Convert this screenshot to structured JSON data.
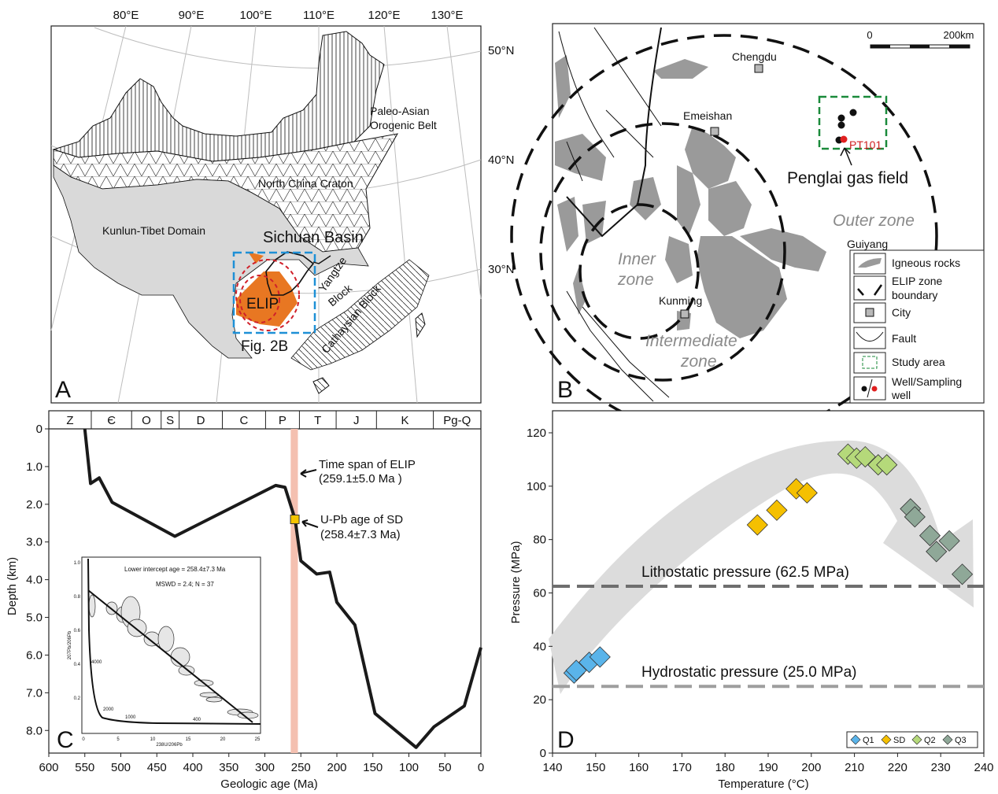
{
  "panel_a": {
    "letter": "A",
    "lon_labels": [
      "80°E",
      "90°E",
      "100°E",
      "110°E",
      "120°E",
      "130°E"
    ],
    "lat_labels": [
      "50°N",
      "40°N",
      "30°N"
    ],
    "regions": {
      "paleo_asian_1": "Paleo-Asian",
      "paleo_asian_2": "Orogenic Belt",
      "north_china": "North China Craton",
      "kunlun": "Kunlun-Tibet Domain",
      "sichuan": "Sichuan Basin",
      "elip": "ELIP",
      "yangtze_1": "Yangtze",
      "yangtze_2": "Block",
      "cathaysian": "Cathaysian Block",
      "fig_ref": "Fig. 2B"
    },
    "colors": {
      "tibet": "#d9d9d9",
      "elip": "#e87722",
      "inset_box": "#1e90d6",
      "elip_zone": "#d0202a"
    }
  },
  "panel_b": {
    "letter": "B",
    "scale_bar": {
      "start": "0",
      "end": "200km"
    },
    "cities": {
      "chengdu": "Chengdu",
      "emeishan": "Emeishan",
      "kunming": "Kunming",
      "guiyang": "Guiyang"
    },
    "well_label": "PT101",
    "gas_field": "Penglai gas field",
    "zones": {
      "outer": "Outer zone",
      "inner_1": "Inner",
      "inner_2": "zone",
      "intermediate_1": "Intermediate",
      "intermediate_2": "zone"
    },
    "legend": [
      {
        "label": "Igneous rocks"
      },
      {
        "label": "ELIP zone",
        "label2": "boundary"
      },
      {
        "label": "City"
      },
      {
        "label": "Fault"
      },
      {
        "label": "Study area"
      },
      {
        "label": "Well/Sampling",
        "label2": "well"
      }
    ],
    "colors": {
      "igneous": "#9a9a9a",
      "study_area": "#1a8a3a",
      "sampling_well": "#e02020"
    }
  },
  "chart_data": [
    {
      "panel": "C",
      "type": "line",
      "xlabel": "Geologic age (Ma)",
      "ylabel": "Depth (km)",
      "xlim": [
        600,
        0
      ],
      "ylim": [
        0,
        8.6
      ],
      "xticks": [
        "600",
        "550",
        "500",
        "450",
        "400",
        "350",
        "300",
        "250",
        "200",
        "150",
        "100",
        "50",
        "0"
      ],
      "yticks": [
        "0",
        "1.0",
        "2.0",
        "3.0",
        "4.0",
        "5.0",
        "6.0",
        "7.0",
        "8.0"
      ],
      "periods": [
        {
          "name": "Z",
          "start": 600,
          "end": 541
        },
        {
          "name": "Є",
          "start": 541,
          "end": 485
        },
        {
          "name": "O",
          "start": 485,
          "end": 444
        },
        {
          "name": "S",
          "start": 444,
          "end": 419
        },
        {
          "name": "D",
          "start": 419,
          "end": 359
        },
        {
          "name": "C",
          "start": 359,
          "end": 299
        },
        {
          "name": "P",
          "start": 299,
          "end": 252
        },
        {
          "name": "T",
          "start": 252,
          "end": 201
        },
        {
          "name": "J",
          "start": 201,
          "end": 145
        },
        {
          "name": "K",
          "start": 145,
          "end": 66
        },
        {
          "name": "Pg-Q",
          "start": 66,
          "end": 0
        }
      ],
      "burial_curve": {
        "x": [
          550,
          542,
          530,
          512,
          425,
          285,
          272,
          258,
          250,
          228,
          210,
          200,
          175,
          147,
          90,
          65,
          23,
          0
        ],
        "y": [
          0,
          1.45,
          1.3,
          1.95,
          2.85,
          1.5,
          1.55,
          2.4,
          3.5,
          3.85,
          3.8,
          4.6,
          5.2,
          7.55,
          8.45,
          7.9,
          7.35,
          5.8
        ]
      },
      "elip_span": {
        "center": 259.1,
        "error": 5.0,
        "color": "#f4c0b0"
      },
      "sd_point": {
        "x": 258.4,
        "y": 2.4,
        "color": "#f5c400"
      },
      "annotations": {
        "elip_1": "Time span of ELIP",
        "elip_2": "(259.1±5.0 Ma )",
        "sd_1": "U-Pb age of SD",
        "sd_2": "(258.4±7.3 Ma)"
      },
      "inset": {
        "text_1": "Lower intercept age = 258.4±7.3 Ma",
        "text_2": "MSWD = 2.4; N = 37",
        "xlabel": "238U/206Pb",
        "ylabel": "207Pb/206Pb",
        "xticks": [
          "0",
          "5",
          "10",
          "15",
          "20",
          "25"
        ],
        "yticks": [
          "0.2",
          "0.4",
          "0.6",
          "0.8",
          "1.0"
        ],
        "concordia_ages": [
          "4000",
          "2000",
          "1000",
          "400"
        ]
      },
      "letter": "C"
    },
    {
      "panel": "D",
      "type": "scatter",
      "xlabel": "Temperature (°C)",
      "ylabel": "Pressure (MPa)",
      "xlim": [
        140,
        240
      ],
      "ylim": [
        0,
        128
      ],
      "xticks": [
        "140",
        "150",
        "160",
        "170",
        "180",
        "190",
        "200",
        "210",
        "220",
        "230",
        "240"
      ],
      "yticks": [
        "0",
        "20",
        "40",
        "60",
        "80",
        "100",
        "120"
      ],
      "reference_lines": [
        {
          "label": "Lithostatic pressure (62.5 MPa)",
          "y": 62.5,
          "color": "#6e6e6e"
        },
        {
          "label": "Hydrostatic pressure (25.0 MPa)",
          "y": 25.0,
          "color": "#9e9e9e"
        }
      ],
      "series": [
        {
          "name": "Q1",
          "color": "#5ab4ea",
          "x": [
            145,
            145.5,
            148.5,
            151
          ],
          "y": [
            30,
            31,
            34,
            36
          ]
        },
        {
          "name": "SD",
          "color": "#f5c000",
          "x": [
            187.5,
            192,
            196.5,
            199
          ],
          "y": [
            85.5,
            91,
            99,
            97.5
          ]
        },
        {
          "name": "Q2",
          "color": "#b5d97a",
          "x": [
            208.5,
            210.5,
            212.5,
            215.5,
            217.5
          ],
          "y": [
            112,
            110.5,
            111,
            108,
            108
          ]
        },
        {
          "name": "Q3",
          "color": "#8fa898",
          "x": [
            223,
            224,
            227.5,
            229,
            232,
            235
          ],
          "y": [
            91.5,
            88.5,
            81.5,
            75.5,
            79.5,
            67
          ]
        }
      ],
      "legend_position": "bottom-right",
      "letter": "D"
    }
  ]
}
